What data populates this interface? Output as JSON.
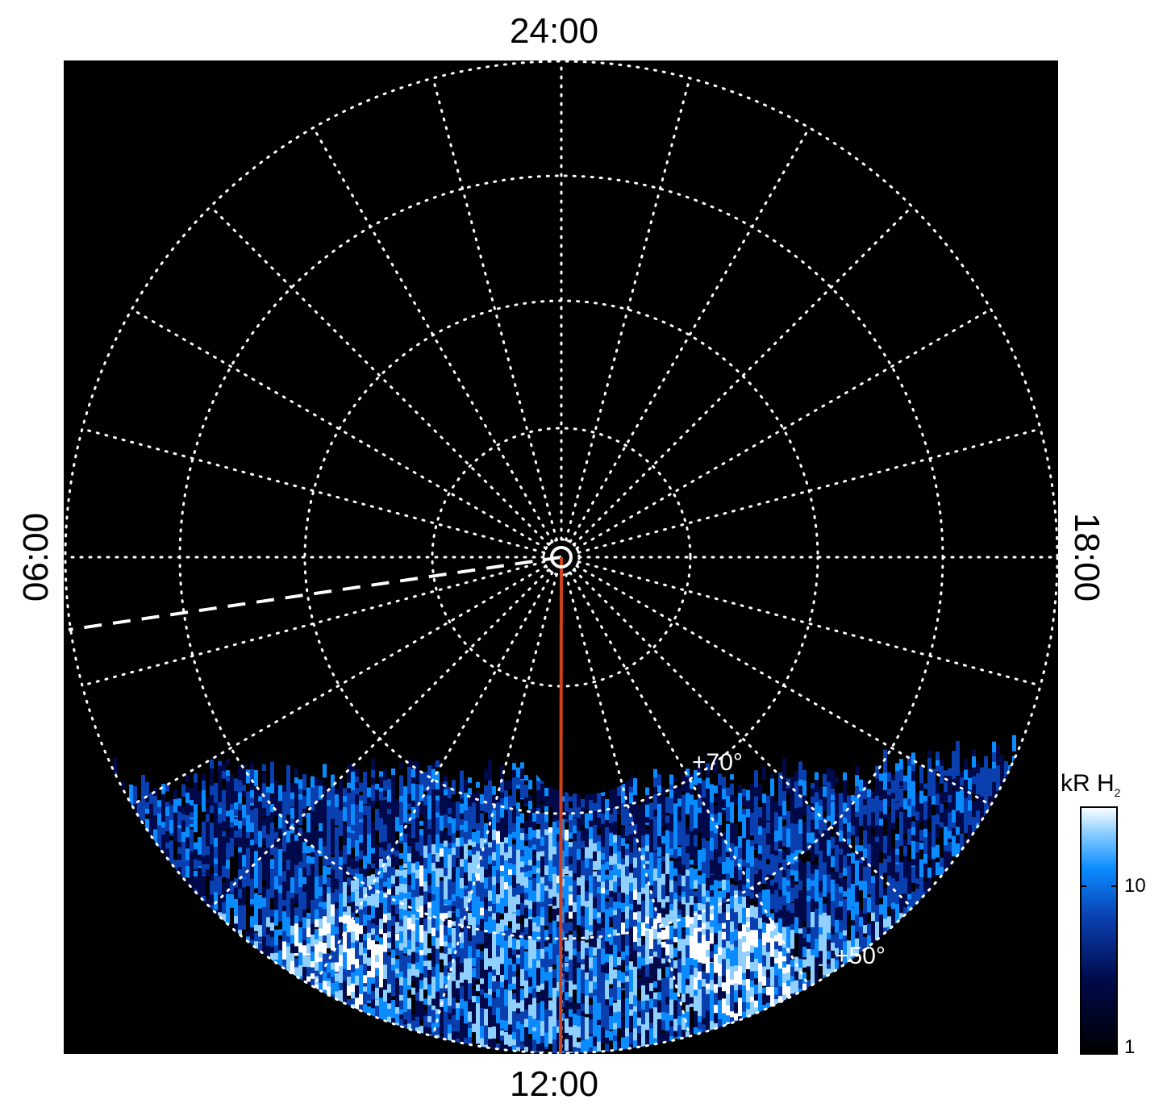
{
  "chart_data": {
    "type": "heatmap",
    "projection": "polar",
    "local_time_labels": {
      "top": "24:00",
      "left": "06:00",
      "right": "18:00",
      "bottom": "12:00"
    },
    "latitude_circles_deg": [
      80,
      70,
      60,
      50
    ],
    "latitude_labels": [
      "+70°",
      "+50°"
    ],
    "meridian_spacing_hours": 1,
    "colorbar": {
      "title": "kR H",
      "title_subscript": "2",
      "scale": "log",
      "range": [
        1,
        25
      ],
      "tick_labels": [
        "10",
        "1"
      ],
      "colors": [
        "#000000",
        "#000a4a",
        "#0a3fb0",
        "#0a8cff",
        "#8fd0ff",
        "#ffffff"
      ]
    },
    "overlays": {
      "red_meridian_lt": "12:00",
      "red_color": "#d0401a",
      "dashed_line_lt": "~06:40"
    },
    "grid": true,
    "background": "#000000"
  }
}
